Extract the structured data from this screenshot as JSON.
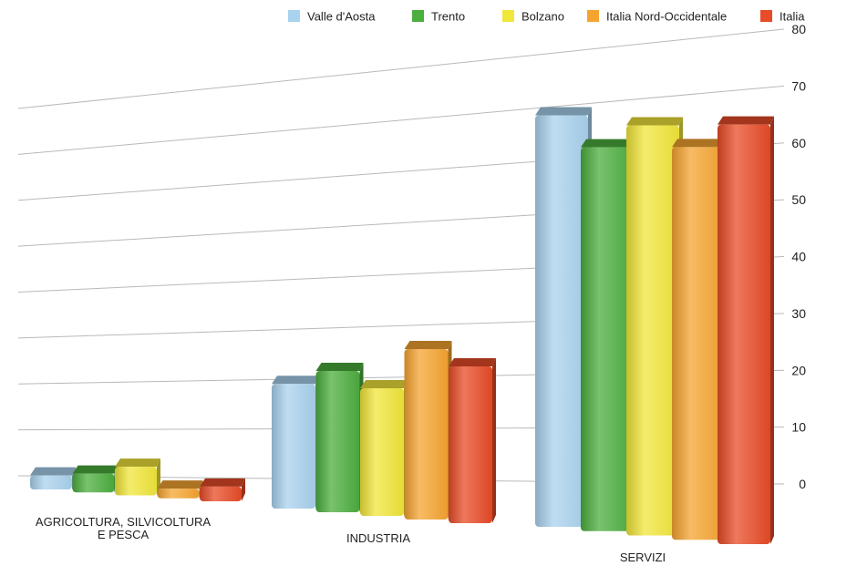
{
  "chart_data": {
    "type": "bar",
    "title": "",
    "xlabel": "",
    "ylabel": "",
    "categories": [
      [
        "AGRICOLTURA, SILVICOLTURA",
        "E PESCA"
      ],
      [
        "INDUSTRIA"
      ],
      [
        "SERVIZI"
      ]
    ],
    "series": [
      {
        "name": "Valle d'Aosta",
        "color": "#a9d2ee",
        "values": [
          3,
          25,
          77
        ]
      },
      {
        "name": "Trento",
        "color": "#4cae3e",
        "values": [
          4,
          28,
          71
        ]
      },
      {
        "name": "Bolzano",
        "color": "#f1e63a",
        "values": [
          6,
          25,
          75
        ]
      },
      {
        "name": "Italia Nord-Occidentale",
        "color": "#f6a430",
        "values": [
          2,
          33,
          71
        ]
      },
      {
        "name": "Italia",
        "color": "#e84b27",
        "values": [
          3,
          30,
          75
        ]
      }
    ],
    "y_ticks": [
      0,
      10,
      20,
      30,
      40,
      50,
      60,
      70,
      80
    ],
    "ylim": [
      0,
      80
    ],
    "grid": true,
    "legend_position": "top-right",
    "style": "3d-perspective"
  }
}
